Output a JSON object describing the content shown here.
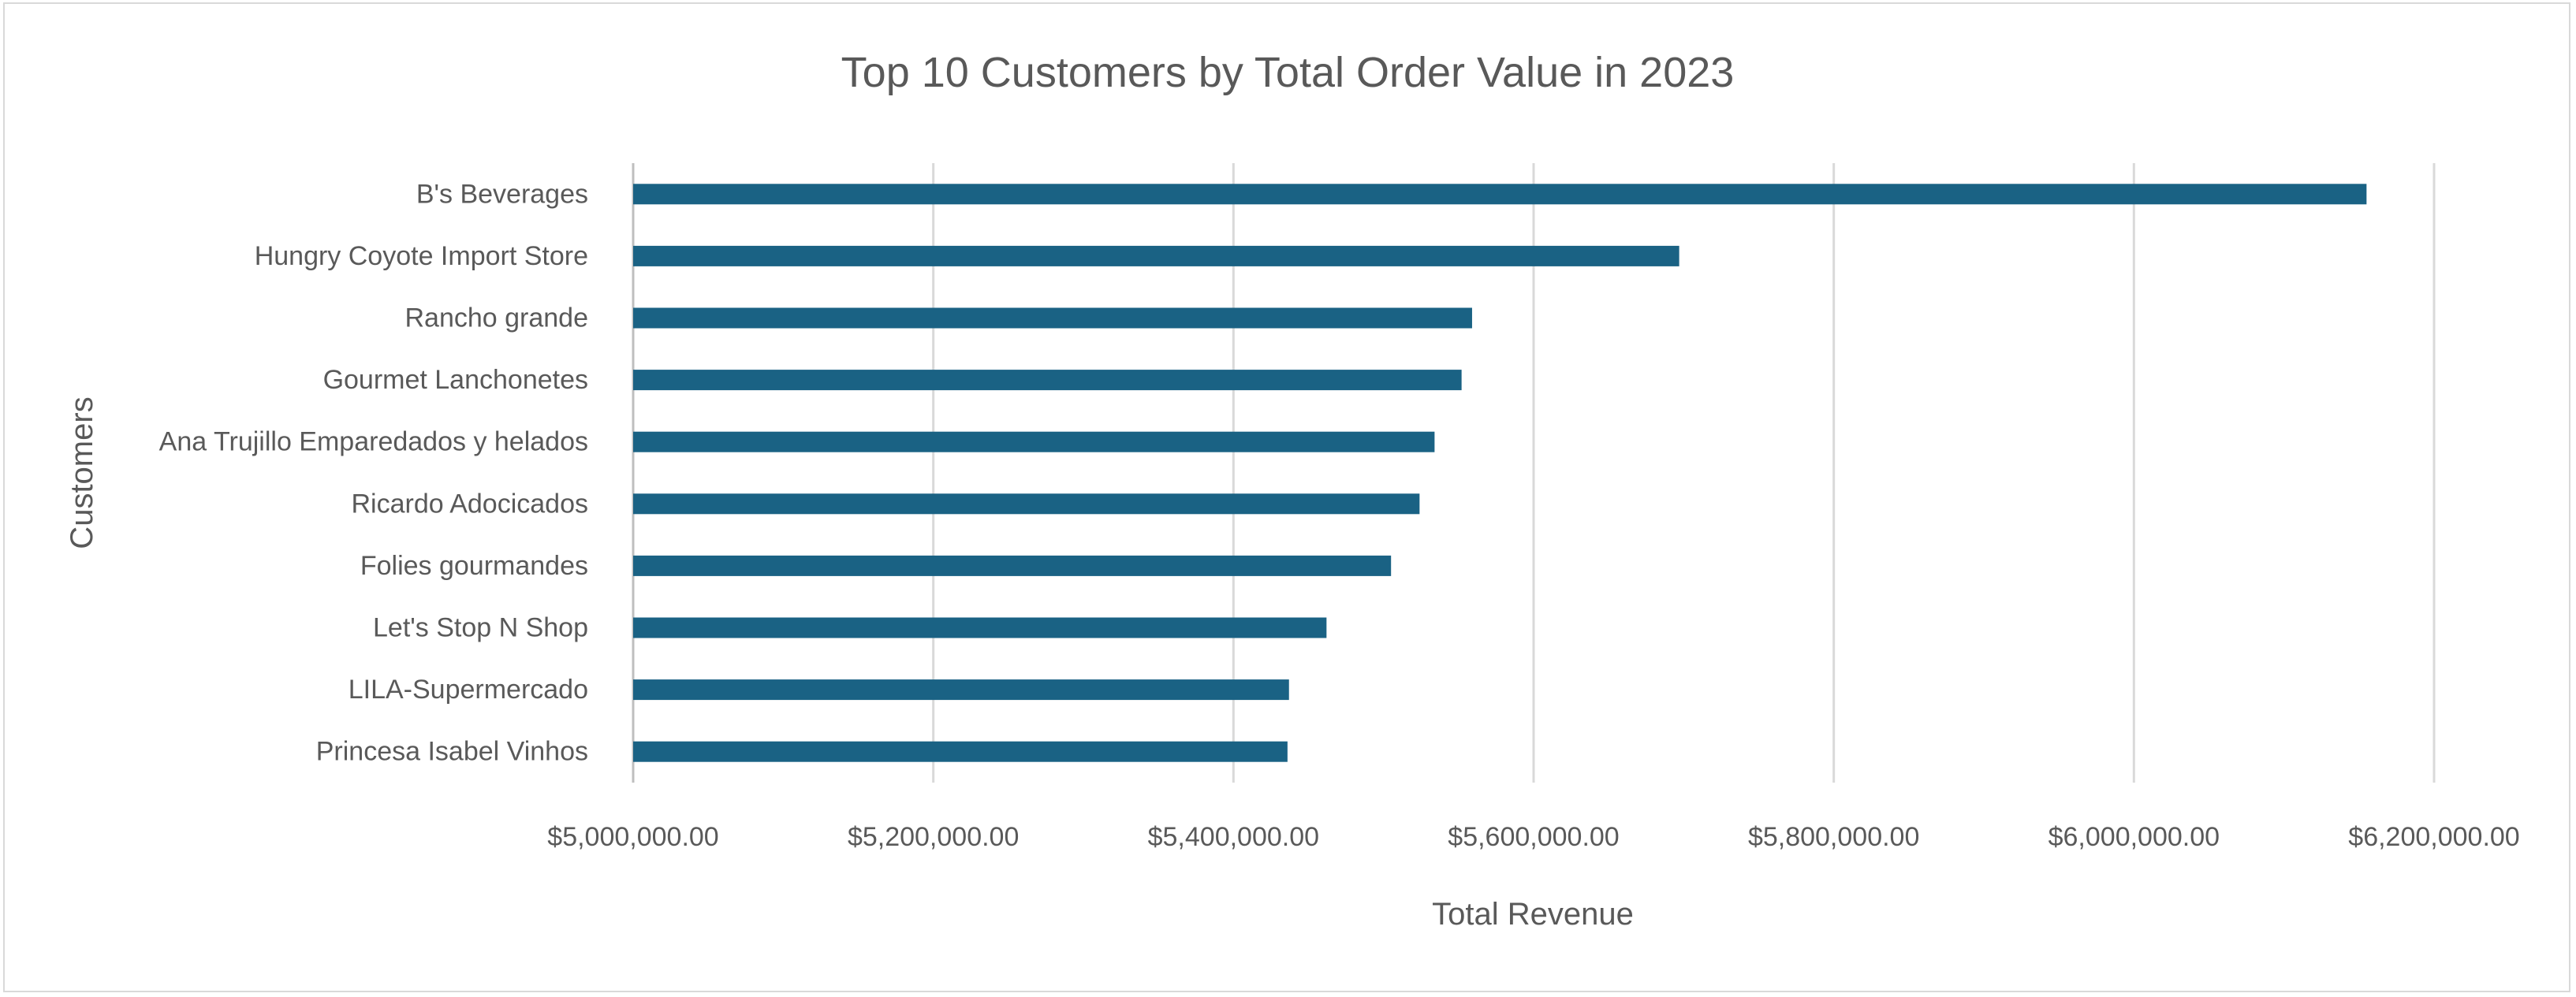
{
  "chart_data": {
    "type": "bar",
    "orientation": "horizontal",
    "title": "Top 10 Customers by Total Order Value in 2023",
    "xlabel": "Total Revenue",
    "ylabel": "Customers",
    "categories": [
      "B's Beverages",
      "Hungry Coyote Import Store",
      "Rancho grande",
      "Gourmet Lanchonetes",
      "Ana Trujillo Emparedados y helados",
      "Ricardo Adocicados",
      "Folies gourmandes",
      "Let's Stop N Shop",
      "LILA-Supermercado",
      "Princesa Isabel Vinhos"
    ],
    "values": [
      6155000,
      5697000,
      5559000,
      5552000,
      5534000,
      5524000,
      5505000,
      5462000,
      5437000,
      5436000
    ],
    "xlim": [
      5000000,
      6200000
    ],
    "xticks": [
      5000000,
      5200000,
      5400000,
      5600000,
      5800000,
      6000000,
      6200000
    ],
    "xtick_labels": [
      "$5,000,000.00",
      "$5,200,000.00",
      "$5,400,000.00",
      "$5,600,000.00",
      "$5,800,000.00",
      "$6,000,000.00",
      "$6,200,000.00"
    ],
    "grid": true,
    "legend": false,
    "bar_color": "#1a6284"
  }
}
